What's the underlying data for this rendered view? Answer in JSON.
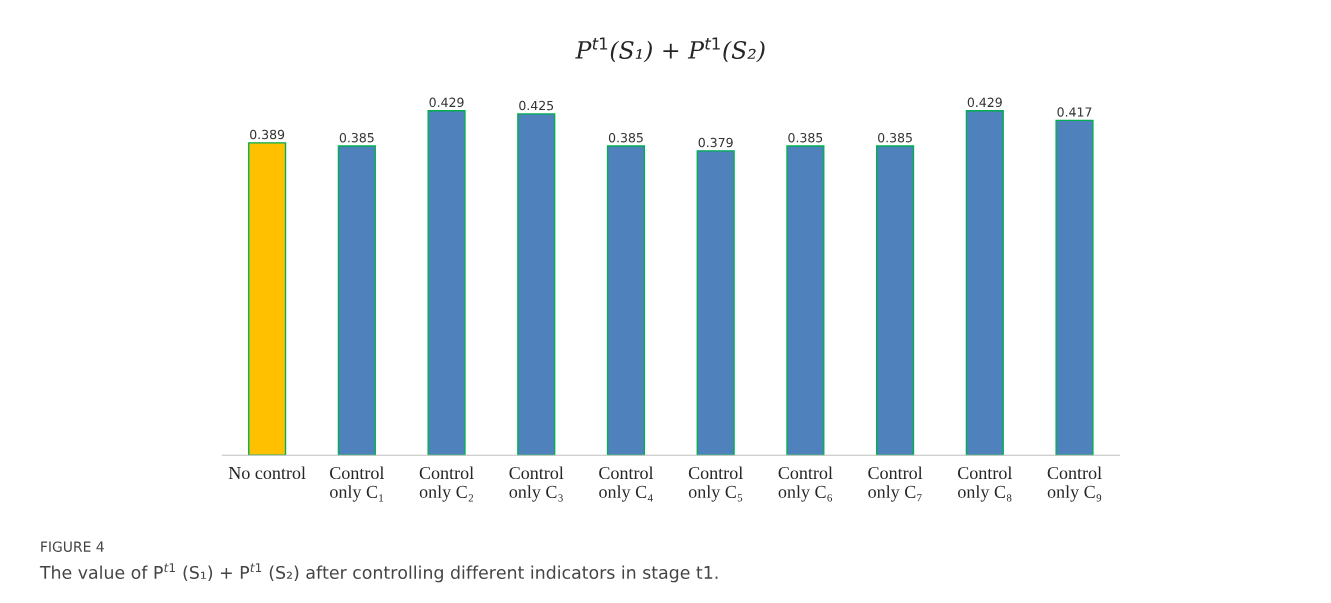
{
  "chart_data": {
    "type": "bar",
    "title": "P$^{t1}$(S₁) + P$^{t1}$(S₂)",
    "categories": [
      "No control",
      "Control\nonly C₁",
      "Control\nonly C₂",
      "Control\nonly C₃",
      "Control\nonly C₄",
      "Control\nonly C₅",
      "Control\nonly C₆",
      "Control\nonly C₇",
      "Control\nonly C₈",
      "Control\nonly C₉"
    ],
    "values": [
      0.389,
      0.385,
      0.429,
      0.425,
      0.385,
      0.379,
      0.385,
      0.385,
      0.429,
      0.417
    ],
    "colors": [
      "#ffc000",
      "#4f81bd",
      "#4f81bd",
      "#4f81bd",
      "#4f81bd",
      "#4f81bd",
      "#4f81bd",
      "#4f81bd",
      "#4f81bd",
      "#4f81bd"
    ],
    "tick_labels": "x",
    "data_labels": true,
    "grid": false,
    "legend": false,
    "annotations": [
      "FIGURE 4",
      "The value of P$^{t1}$ (S₁) + P$^{t1}$ (S₂) after controlling different indicators in stage t1."
    ]
  }
}
